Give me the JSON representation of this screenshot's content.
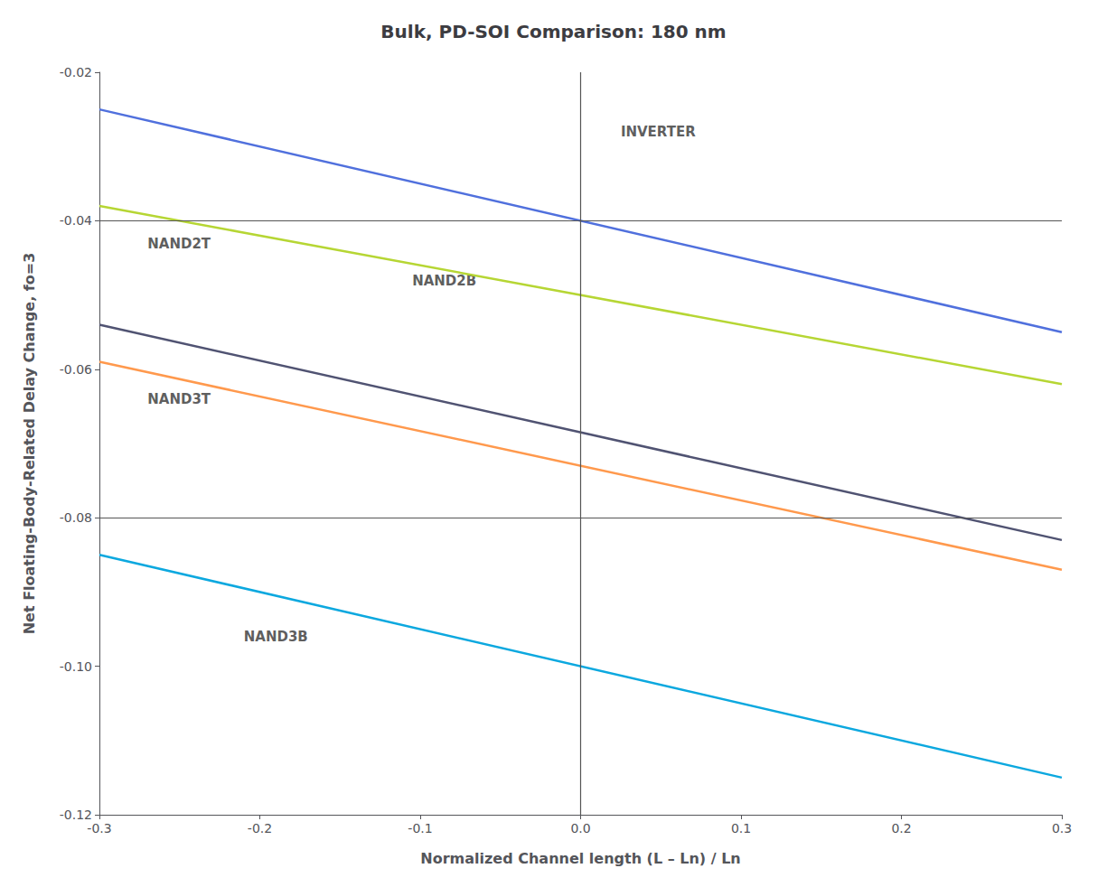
{
  "chart_data": {
    "type": "line",
    "title": "Bulk, PD-SOI Comparison: 180 nm",
    "xlabel": "Normalized Channel length (L – Ln) / Ln",
    "ylabel": "Net Floating-Body-Related Delay Change, fo=3",
    "xlim": [
      -0.3,
      0.3
    ],
    "ylim": [
      -0.12,
      -0.02
    ],
    "xticks": [
      -0.3,
      -0.2,
      -0.1,
      {
        "value": 0.0,
        "label": "0.0"
      },
      0.1,
      0.2,
      0.3
    ],
    "yticks": [
      -0.12,
      {
        "value": -0.1,
        "label": "-0.10"
      },
      -0.08,
      -0.06,
      -0.04,
      -0.02
    ],
    "x": [
      -0.3,
      0.3
    ],
    "series": [
      {
        "name": "INVERTER",
        "values": [
          -0.025,
          -0.055
        ]
      },
      {
        "name": "NAND2T",
        "values": [
          -0.038,
          -0.062
        ]
      },
      {
        "name": "NAND2B",
        "values": [
          -0.054,
          -0.083
        ]
      },
      {
        "name": "NAND3T",
        "values": [
          -0.059,
          -0.087
        ]
      },
      {
        "name": "NAND3B",
        "values": [
          -0.085,
          -0.115
        ]
      }
    ],
    "annotations": [
      {
        "text": "INVERTER",
        "x": 0.025,
        "y": -0.029
      },
      {
        "text": "NAND2T",
        "x": -0.27,
        "y": -0.044
      },
      {
        "text": "NAND2B",
        "x": -0.105,
        "y": -0.049
      },
      {
        "text": "NAND3T",
        "x": -0.27,
        "y": -0.065
      },
      {
        "text": "NAND3B",
        "x": -0.21,
        "y": -0.097
      }
    ],
    "hlines": [
      -0.04,
      -0.08
    ],
    "vlines": [
      0.0
    ],
    "grid": false,
    "legend": false
  }
}
